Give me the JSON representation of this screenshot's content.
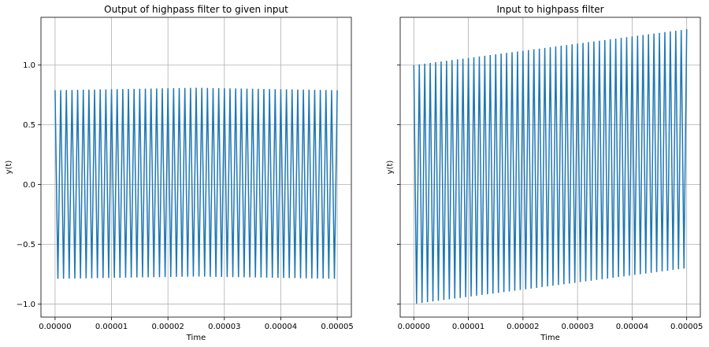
{
  "colors": {
    "line": "#1f77b4",
    "grid": "#b0b0b0",
    "background": "#ffffff"
  },
  "chart_data": [
    {
      "type": "line",
      "title": "Output of highpass filter to given input",
      "xlabel": "Time",
      "ylabel": "y(t)",
      "xlim": [
        -2.5e-06,
        5.25e-05
      ],
      "ylim": [
        -1.11,
        1.4
      ],
      "xticks": [
        0,
        1e-05,
        2e-05,
        3e-05,
        4e-05,
        5e-05
      ],
      "xtick_labels": [
        "0.00000",
        "0.00001",
        "0.00002",
        "0.00003",
        "0.00004",
        "0.00005"
      ],
      "yticks": [
        -1.0,
        -0.5,
        0.0,
        0.5,
        1.0
      ],
      "ytick_labels": [
        "−1.0",
        "−0.5",
        "0.0",
        "0.5",
        "1.0"
      ],
      "grid": true,
      "series": [
        {
          "kind": "square_wave",
          "periods": 50,
          "t_start": 0,
          "t_end": 5e-05,
          "high": [
            0.79,
            0.81,
            0.79
          ],
          "low": [
            -0.79,
            -0.77,
            -0.79
          ]
        }
      ]
    },
    {
      "type": "line",
      "title": "Input to highpass filter",
      "xlabel": "Time",
      "ylabel": "y(t)",
      "xlim": [
        -2.5e-06,
        5.25e-05
      ],
      "ylim": [
        -1.11,
        1.4
      ],
      "xticks": [
        0,
        1e-05,
        2e-05,
        3e-05,
        4e-05,
        5e-05
      ],
      "xtick_labels": [
        "0.00000",
        "0.00001",
        "0.00002",
        "0.00003",
        "0.00004",
        "0.00005"
      ],
      "yticks": [
        -1.0,
        -0.5,
        0.0,
        0.5,
        1.0
      ],
      "ytick_labels": [],
      "grid": true,
      "series": [
        {
          "kind": "square_wave",
          "periods": 50,
          "t_start": 0,
          "t_end": 5e-05,
          "high": [
            1.0,
            1.15,
            1.3
          ],
          "low": [
            -1.0,
            -0.85,
            -0.7
          ]
        }
      ]
    }
  ]
}
